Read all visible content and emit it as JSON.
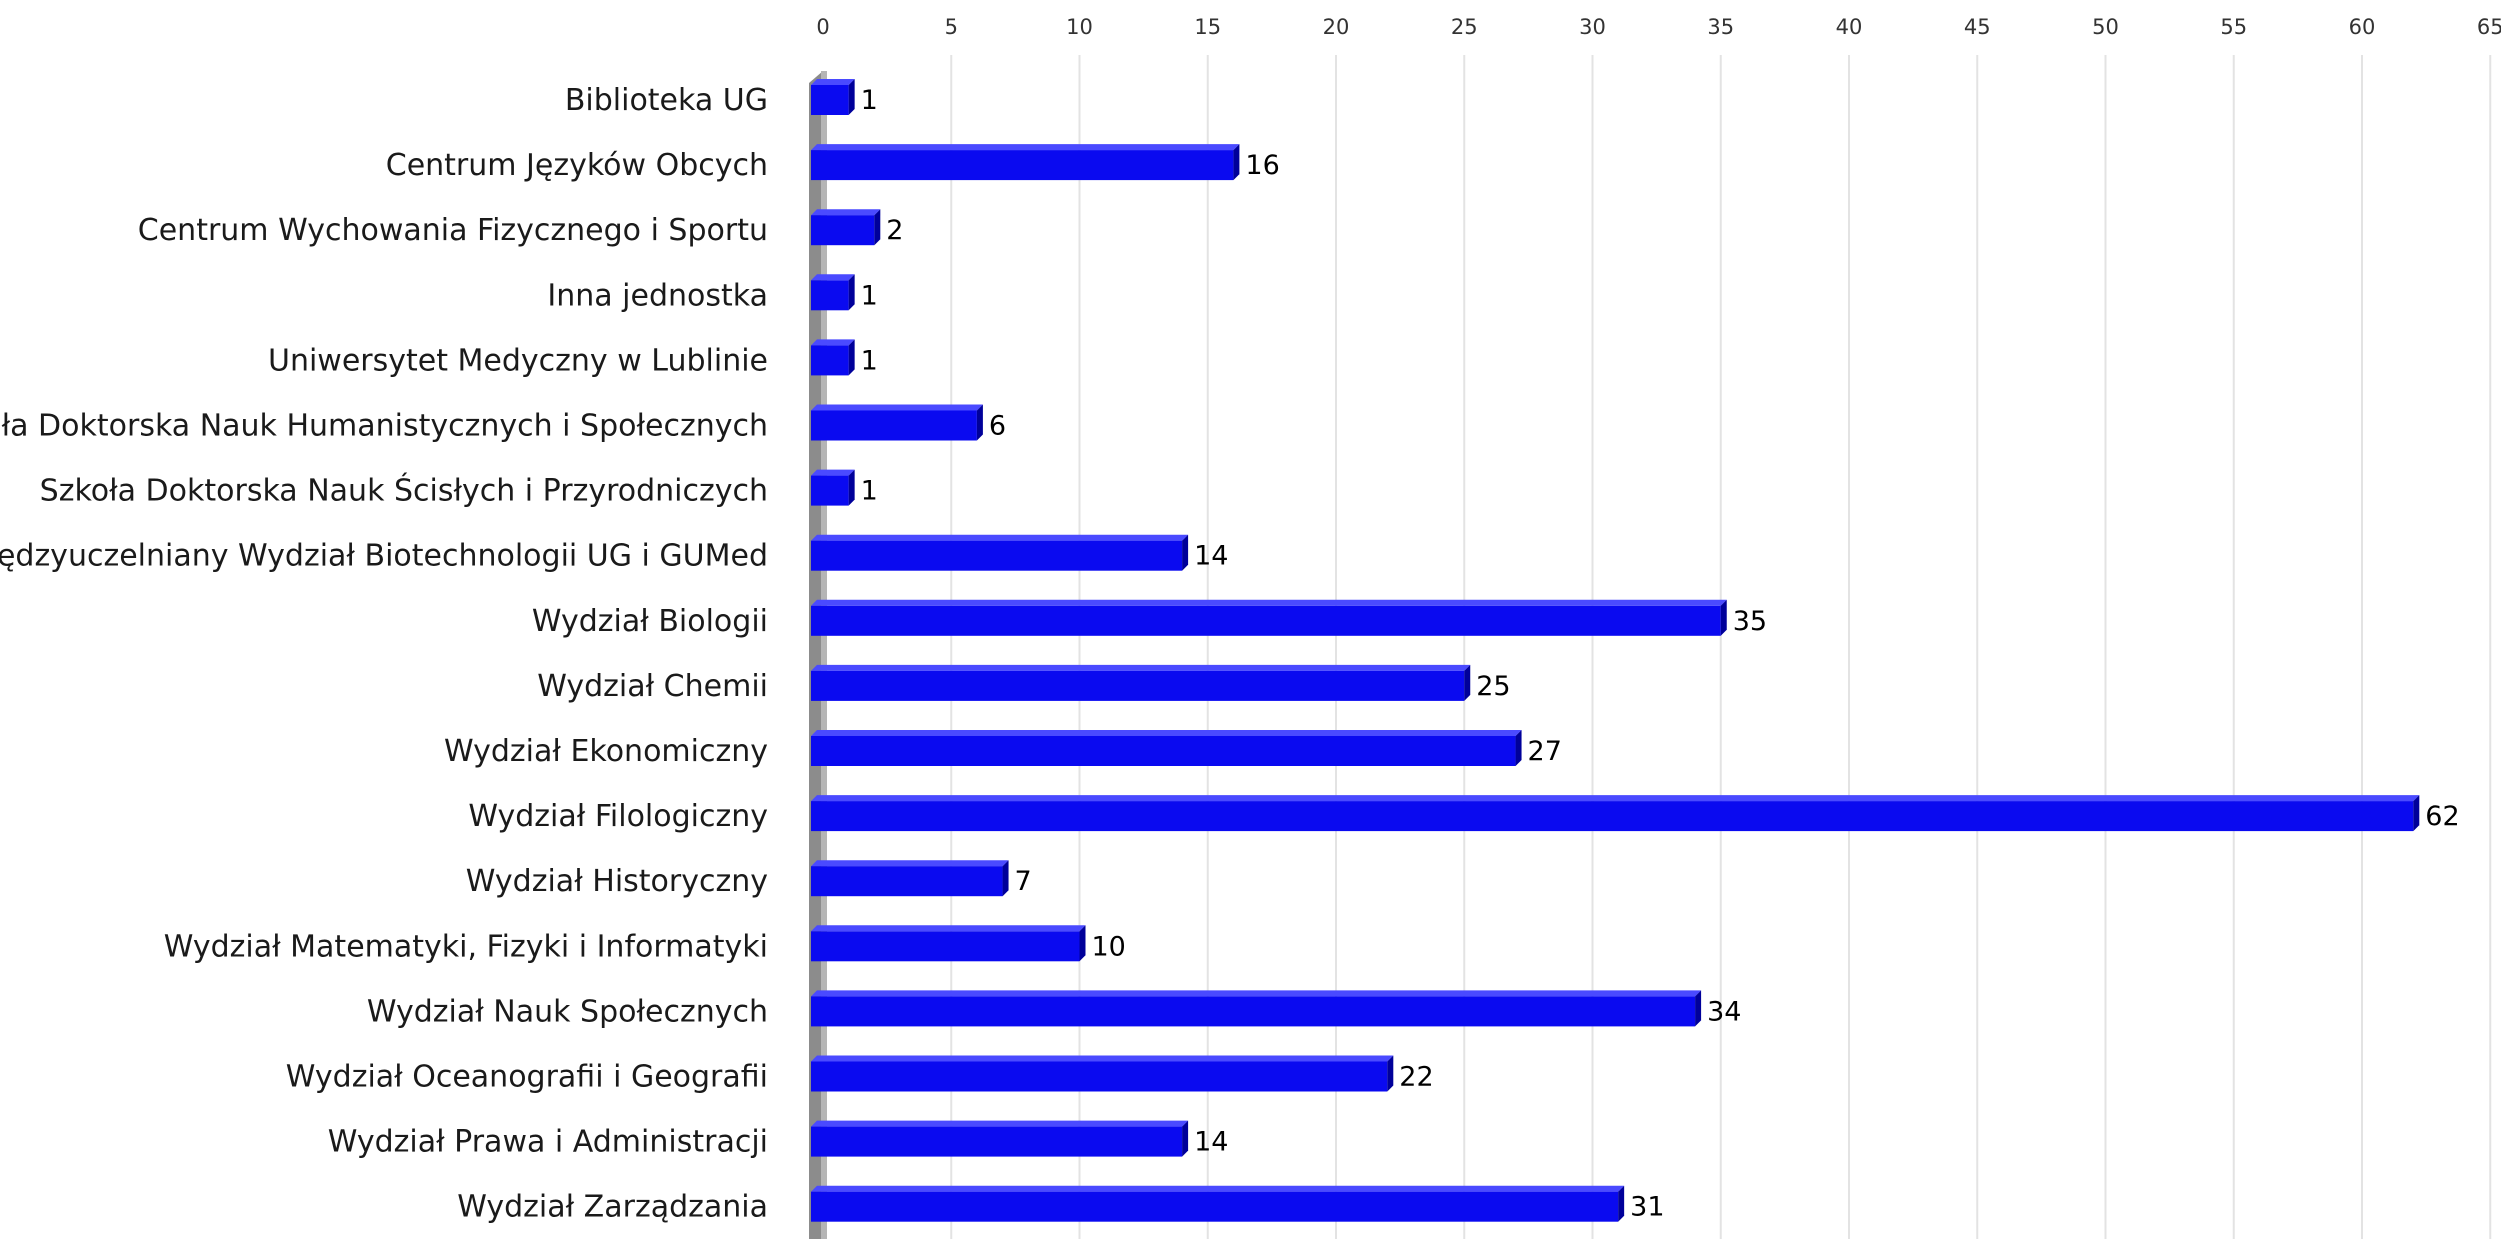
{
  "chart_data": {
    "type": "bar",
    "orientation": "horizontal",
    "title": "",
    "xlabel": "",
    "ylabel": "",
    "xlim": [
      0,
      65
    ],
    "ticks": [
      "0",
      "5",
      "10",
      "15",
      "20",
      "25",
      "30",
      "35",
      "40",
      "45",
      "50",
      "55",
      "60",
      "65"
    ],
    "tick_values": [
      0,
      5,
      10,
      15,
      20,
      25,
      30,
      35,
      40,
      45,
      50,
      55,
      60,
      65
    ],
    "grid": true,
    "tick_position": "top",
    "legend": "none",
    "bar_color": "#0a0af0",
    "bar_top_color": "#4a4aff",
    "bar_side_color": "#00009a",
    "categories": [
      "Biblioteka UG",
      "Centrum Języków Obcych",
      "Centrum Wychowania Fizycznego i Sportu",
      "Inna jednostka",
      "Uniwersytet Medyczny w Lublinie",
      "Szkoła Doktorska Nauk Humanistycznych i Społecznych",
      "Szkoła Doktorska Nauk Ścisłych i Przyrodniczych",
      "Międzyuczelniany Wydział Biotechnologii UG i GUMed",
      "Wydział Biologii",
      "Wydział Chemii",
      "Wydział Ekonomiczny",
      "Wydział Filologiczny",
      "Wydział Historyczny",
      "Wydział Matematyki, Fizyki i Informatyki",
      "Wydział Nauk Społecznych",
      "Wydział Oceanografii i Geografii",
      "Wydział Prawa i Administracji",
      "Wydział Zarządzania"
    ],
    "values": [
      1,
      16,
      2,
      1,
      1,
      6,
      1,
      14,
      35,
      25,
      27,
      62,
      7,
      10,
      34,
      22,
      14,
      31
    ],
    "value_labels": [
      "1",
      "16",
      "2",
      "1",
      "1",
      "6",
      "1",
      "14",
      "35",
      "25",
      "27",
      "62",
      "7",
      "10",
      "34",
      "22",
      "14",
      "31"
    ]
  }
}
